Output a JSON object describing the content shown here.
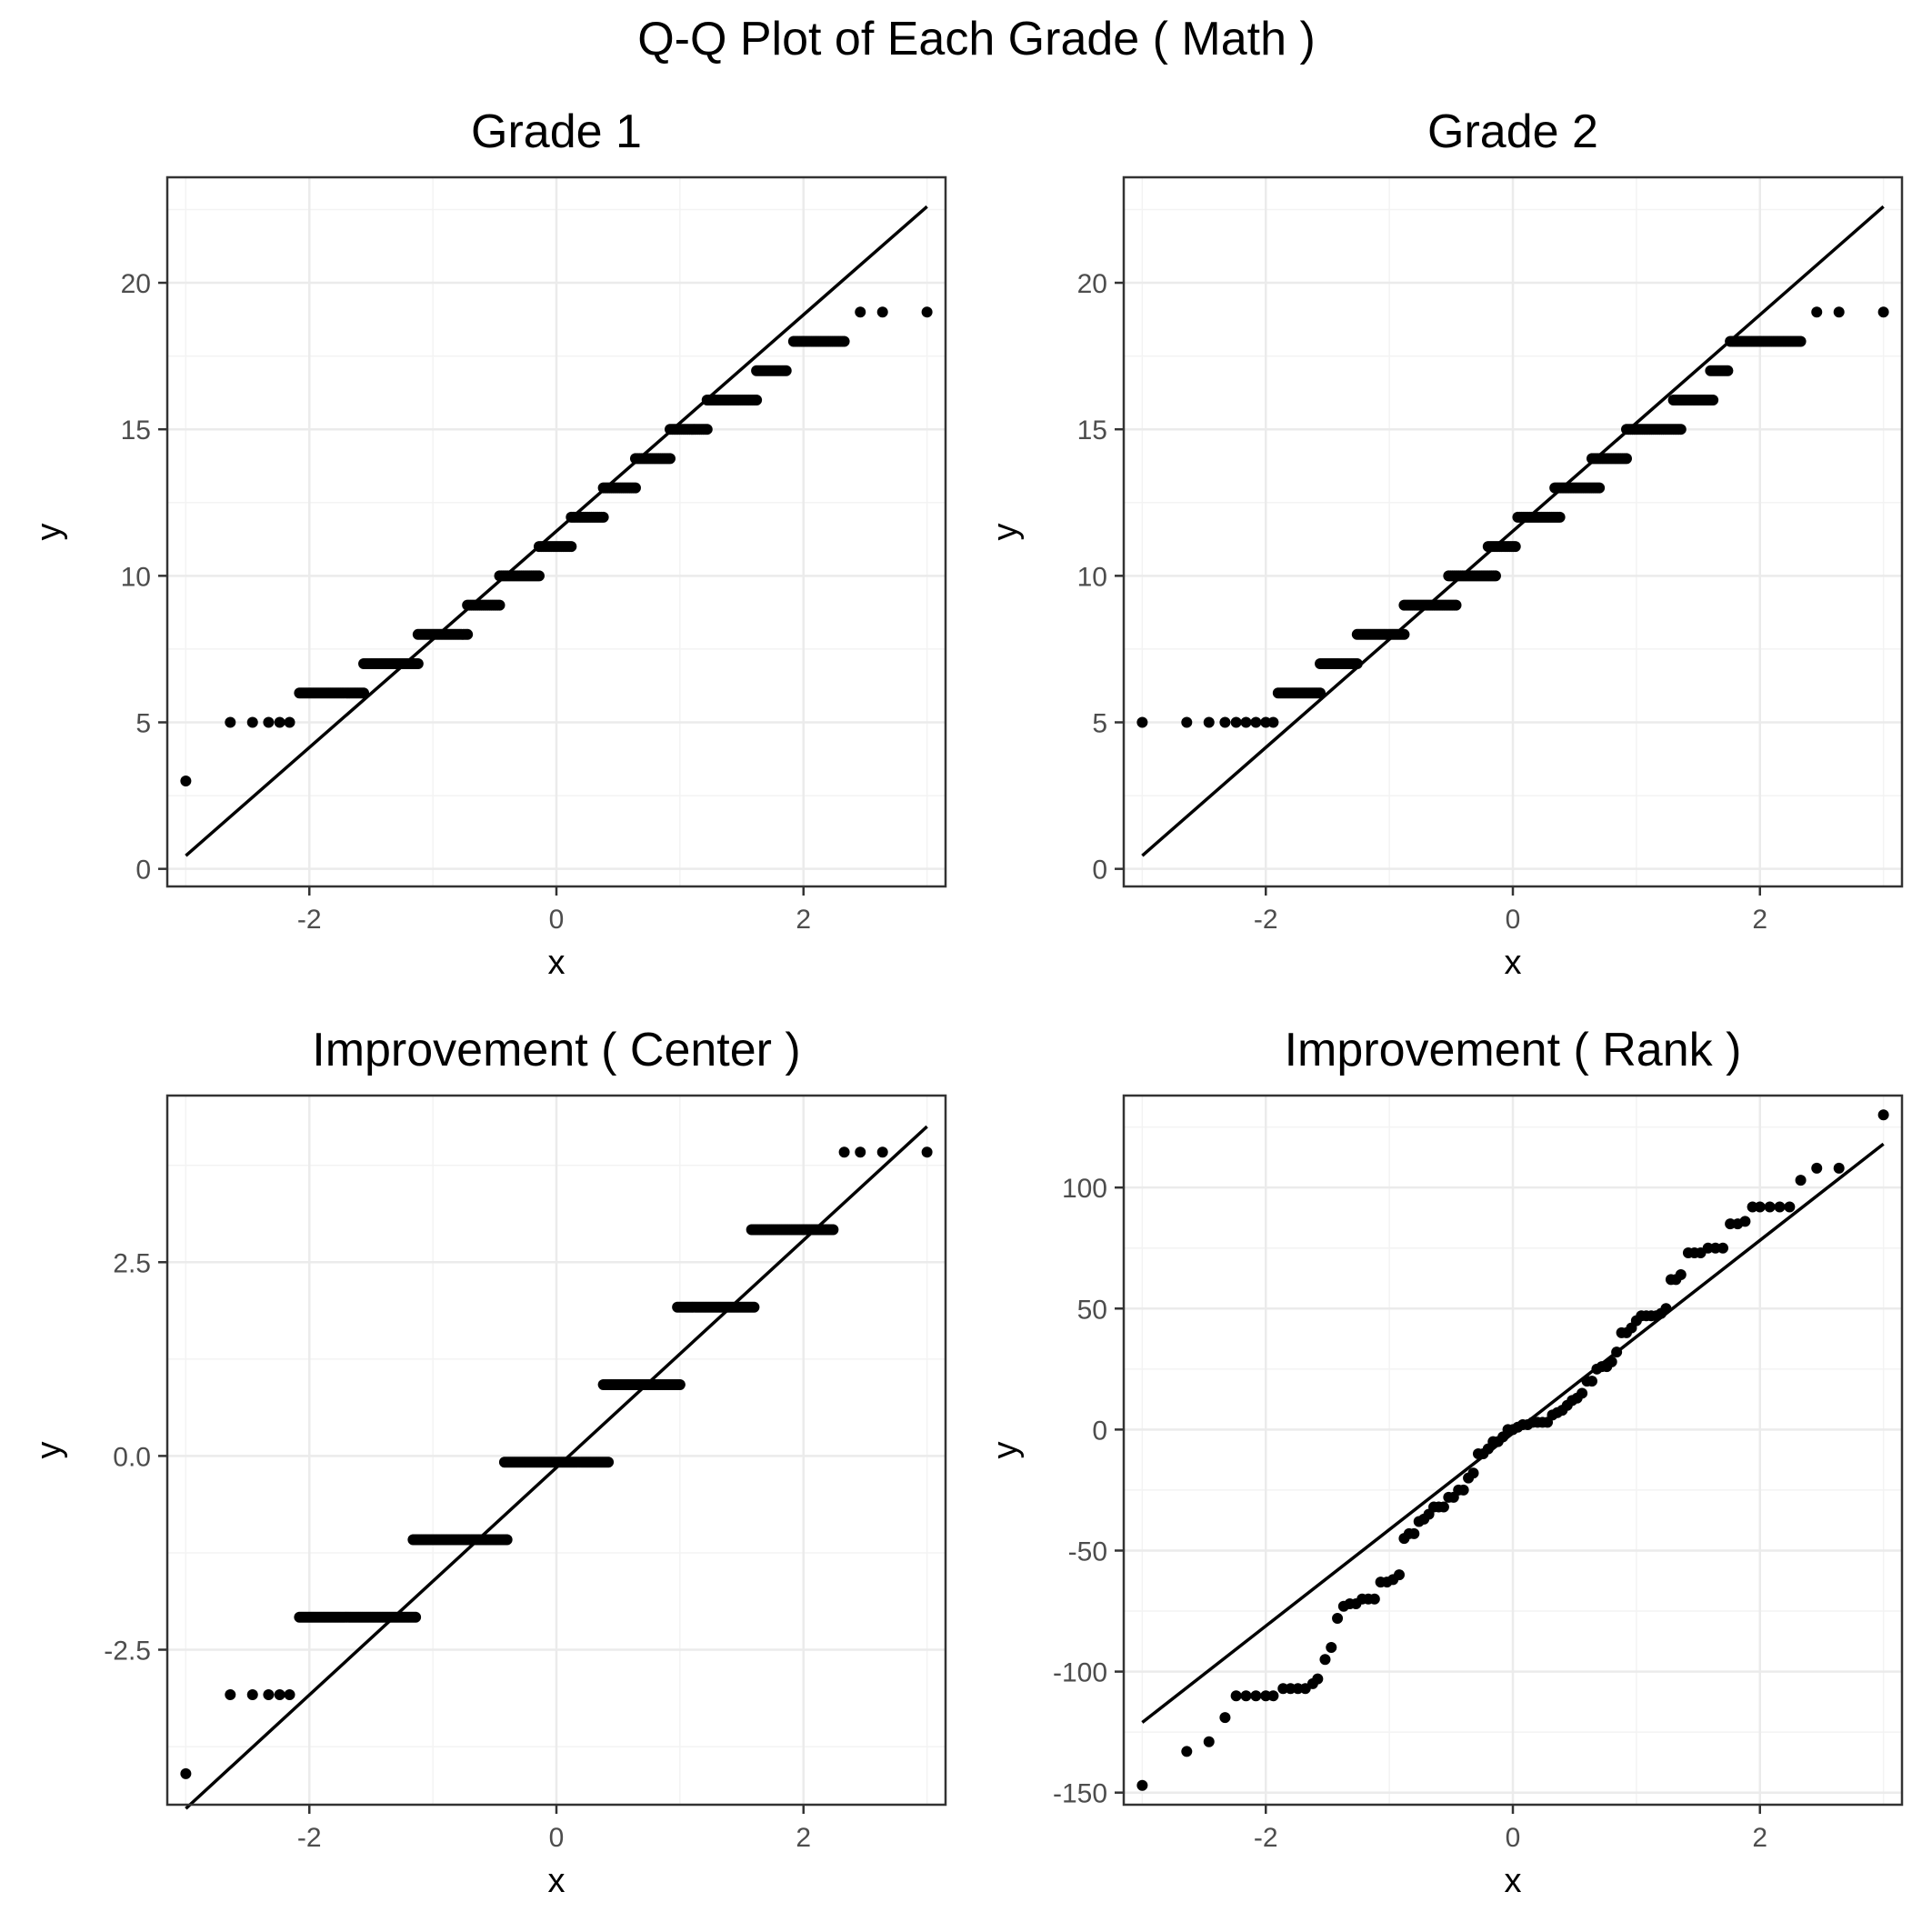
{
  "title": "Q-Q Plot of Each Grade ( Math )",
  "colors": {
    "points": "#000000",
    "line": "#000000",
    "grid_major": "#ebebeb",
    "grid_minor": "#f3f3f3",
    "panel_border": "#333333",
    "tick_text": "#4d4d4d"
  },
  "chart_data": [
    {
      "type": "scatter",
      "title": "Grade 1",
      "xlabel": "x",
      "ylabel": "y",
      "xlim": [
        -3.15,
        3.15
      ],
      "ylim": [
        -0.6,
        23.6
      ],
      "x_ticks": [
        -2,
        0,
        2
      ],
      "x_tick_labels": [
        "-2",
        "0",
        "2"
      ],
      "y_ticks": [
        0,
        5,
        10,
        15,
        20
      ],
      "y_tick_labels": [
        "0",
        "5",
        "10",
        "15",
        "20"
      ],
      "grid": true,
      "reference_line": {
        "x": [
          -3.0,
          3.0
        ],
        "y": [
          0.45,
          22.6
        ]
      },
      "steps": [
        {
          "y": 3,
          "x": [
            -3.0
          ]
        },
        {
          "y": 5,
          "x": [
            -2.64,
            -2.46,
            -2.33,
            -2.24,
            -2.16
          ]
        },
        {
          "y": 6,
          "x_from": -2.08,
          "x_to": -1.56
        },
        {
          "y": 7,
          "x_from": -1.56,
          "x_to": -1.12
        },
        {
          "y": 8,
          "x_from": -1.12,
          "x_to": -0.72
        },
        {
          "y": 9,
          "x_from": -0.72,
          "x_to": -0.46
        },
        {
          "y": 10,
          "x_from": -0.46,
          "x_to": -0.14
        },
        {
          "y": 11,
          "x_from": -0.14,
          "x_to": 0.12
        },
        {
          "y": 12,
          "x_from": 0.12,
          "x_to": 0.38
        },
        {
          "y": 13,
          "x_from": 0.38,
          "x_to": 0.64
        },
        {
          "y": 14,
          "x_from": 0.64,
          "x_to": 0.92
        },
        {
          "y": 15,
          "x_from": 0.92,
          "x_to": 1.22
        },
        {
          "y": 16,
          "x_from": 1.22,
          "x_to": 1.62
        },
        {
          "y": 17,
          "x_from": 1.62,
          "x_to": 1.86
        },
        {
          "y": 18,
          "x_from": 1.92,
          "x_to": 2.33
        },
        {
          "y": 19,
          "x": [
            2.46,
            2.64,
            3.0
          ]
        }
      ]
    },
    {
      "type": "scatter",
      "title": "Grade 2",
      "xlabel": "x",
      "ylabel": "y",
      "xlim": [
        -3.15,
        3.15
      ],
      "ylim": [
        -0.6,
        23.6
      ],
      "x_ticks": [
        -2,
        0,
        2
      ],
      "x_tick_labels": [
        "-2",
        "0",
        "2"
      ],
      "y_ticks": [
        0,
        5,
        10,
        15,
        20
      ],
      "y_tick_labels": [
        "0",
        "5",
        "10",
        "15",
        "20"
      ],
      "grid": true,
      "reference_line": {
        "x": [
          -3.0,
          3.0
        ],
        "y": [
          0.45,
          22.6
        ]
      },
      "steps": [
        {
          "y": 5,
          "x": [
            -3.0,
            -2.64,
            -2.46,
            -2.33,
            -2.24,
            -2.16,
            -2.08,
            -2.0,
            -1.94
          ]
        },
        {
          "y": 6,
          "x_from": -1.9,
          "x_to": -1.56
        },
        {
          "y": 7,
          "x_from": -1.56,
          "x_to": -1.26
        },
        {
          "y": 8,
          "x_from": -1.26,
          "x_to": -0.88
        },
        {
          "y": 9,
          "x_from": -0.88,
          "x_to": -0.46
        },
        {
          "y": 10,
          "x_from": -0.52,
          "x_to": -0.14
        },
        {
          "y": 11,
          "x_from": -0.2,
          "x_to": 0.02
        },
        {
          "y": 12,
          "x_from": 0.04,
          "x_to": 0.38
        },
        {
          "y": 13,
          "x_from": 0.34,
          "x_to": 0.7
        },
        {
          "y": 14,
          "x_from": 0.64,
          "x_to": 0.92
        },
        {
          "y": 15,
          "x_from": 0.92,
          "x_to": 1.36
        },
        {
          "y": 16,
          "x_from": 1.3,
          "x_to": 1.62
        },
        {
          "y": 17,
          "x_from": 1.6,
          "x_to": 1.74
        },
        {
          "y": 18,
          "x_from": 1.76,
          "x_to": 2.33
        },
        {
          "y": 19,
          "x": [
            2.46,
            2.64,
            3.0
          ]
        }
      ]
    },
    {
      "type": "scatter",
      "title": "Improvement ( Center )",
      "xlabel": "x",
      "ylabel": "y",
      "xlim": [
        -3.15,
        3.15
      ],
      "ylim": [
        -4.5,
        4.65
      ],
      "x_ticks": [
        -2,
        0,
        2
      ],
      "x_tick_labels": [
        "-2",
        "0",
        "2"
      ],
      "y_ticks": [
        -2.5,
        0.0,
        2.5
      ],
      "y_tick_labels": [
        "-2.5",
        "0.0",
        "2.5"
      ],
      "grid": true,
      "reference_line": {
        "x": [
          -3.0,
          3.0
        ],
        "y": [
          -4.55,
          4.25
        ]
      },
      "steps": [
        {
          "y": -4.1,
          "x": [
            -3.0
          ]
        },
        {
          "y": -3.08,
          "x": [
            -2.64,
            -2.46,
            -2.33,
            -2.24,
            -2.16
          ]
        },
        {
          "y": -2.08,
          "x_from": -2.08,
          "x_to": -1.14
        },
        {
          "y": -1.08,
          "x_from": -1.16,
          "x_to": -0.4
        },
        {
          "y": -0.08,
          "x_from": -0.42,
          "x_to": 0.42
        },
        {
          "y": 0.92,
          "x_from": 0.38,
          "x_to": 1.0
        },
        {
          "y": 1.92,
          "x_from": 0.98,
          "x_to": 1.6
        },
        {
          "y": 2.92,
          "x_from": 1.58,
          "x_to": 2.24
        },
        {
          "y": 3.92,
          "x": [
            2.33,
            2.46,
            2.64,
            3.0
          ]
        }
      ]
    },
    {
      "type": "scatter",
      "title": "Improvement ( Rank )",
      "xlabel": "x",
      "ylabel": "y",
      "xlim": [
        -3.15,
        3.15
      ],
      "ylim": [
        -155,
        138
      ],
      "x_ticks": [
        -2,
        0,
        2
      ],
      "x_tick_labels": [
        "-2",
        "0",
        "2"
      ],
      "y_ticks": [
        -150,
        -100,
        -50,
        0,
        50,
        100
      ],
      "y_tick_labels": [
        "-150",
        "-100",
        "-50",
        "0",
        "50",
        "100"
      ],
      "grid": true,
      "reference_line": {
        "x": [
          -3.0,
          3.0
        ],
        "y": [
          -121,
          118
        ]
      },
      "points_xy": [
        [
          -3.0,
          -147
        ],
        [
          -2.64,
          -133
        ],
        [
          -2.46,
          -129
        ],
        [
          -2.33,
          -119
        ],
        [
          -2.24,
          -110
        ],
        [
          -2.16,
          -110
        ],
        [
          -2.08,
          -110
        ],
        [
          -2.0,
          -110
        ],
        [
          -1.94,
          -110
        ],
        [
          -1.86,
          -107
        ],
        [
          -1.8,
          -107
        ],
        [
          -1.74,
          -107
        ],
        [
          -1.68,
          -107
        ],
        [
          -1.62,
          -105
        ],
        [
          -1.58,
          -103
        ],
        [
          -1.52,
          -95
        ],
        [
          -1.47,
          -90
        ],
        [
          -1.42,
          -78
        ],
        [
          -1.37,
          -73
        ],
        [
          -1.32,
          -72
        ],
        [
          -1.27,
          -72
        ],
        [
          -1.22,
          -70
        ],
        [
          -1.17,
          -70
        ],
        [
          -1.12,
          -70
        ],
        [
          -1.07,
          -63
        ],
        [
          -1.02,
          -63
        ],
        [
          -0.97,
          -62
        ],
        [
          -0.92,
          -60
        ],
        [
          -0.88,
          -45
        ],
        [
          -0.84,
          -43
        ],
        [
          -0.8,
          -43
        ],
        [
          -0.76,
          -38
        ],
        [
          -0.72,
          -37
        ],
        [
          -0.68,
          -35
        ],
        [
          -0.64,
          -32
        ],
        [
          -0.6,
          -32
        ],
        [
          -0.56,
          -32
        ],
        [
          -0.52,
          -28
        ],
        [
          -0.48,
          -28
        ],
        [
          -0.44,
          -25
        ],
        [
          -0.4,
          -25
        ],
        [
          -0.36,
          -20
        ],
        [
          -0.32,
          -18
        ],
        [
          -0.28,
          -10
        ],
        [
          -0.24,
          -10
        ],
        [
          -0.2,
          -8
        ],
        [
          -0.16,
          -5
        ],
        [
          -0.12,
          -5
        ],
        [
          -0.08,
          -3
        ],
        [
          -0.04,
          0
        ],
        [
          0.0,
          0
        ],
        [
          0.04,
          1
        ],
        [
          0.08,
          2
        ],
        [
          0.12,
          2
        ],
        [
          0.16,
          3
        ],
        [
          0.2,
          3
        ],
        [
          0.24,
          3
        ],
        [
          0.28,
          3
        ],
        [
          0.32,
          6
        ],
        [
          0.36,
          7
        ],
        [
          0.4,
          8
        ],
        [
          0.44,
          10
        ],
        [
          0.48,
          12
        ],
        [
          0.52,
          13
        ],
        [
          0.56,
          15
        ],
        [
          0.6,
          20
        ],
        [
          0.64,
          20
        ],
        [
          0.68,
          25
        ],
        [
          0.72,
          26
        ],
        [
          0.76,
          26
        ],
        [
          0.8,
          28
        ],
        [
          0.84,
          32
        ],
        [
          0.88,
          40
        ],
        [
          0.92,
          40
        ],
        [
          0.96,
          42
        ],
        [
          1.0,
          45
        ],
        [
          1.04,
          47
        ],
        [
          1.08,
          47
        ],
        [
          1.12,
          47
        ],
        [
          1.16,
          47
        ],
        [
          1.2,
          48
        ],
        [
          1.24,
          50
        ],
        [
          1.28,
          62
        ],
        [
          1.32,
          62
        ],
        [
          1.36,
          64
        ],
        [
          1.42,
          73
        ],
        [
          1.47,
          73
        ],
        [
          1.52,
          73
        ],
        [
          1.58,
          75
        ],
        [
          1.64,
          75
        ],
        [
          1.7,
          75
        ],
        [
          1.76,
          85
        ],
        [
          1.82,
          85
        ],
        [
          1.88,
          86
        ],
        [
          1.94,
          92
        ],
        [
          2.0,
          92
        ],
        [
          2.08,
          92
        ],
        [
          2.16,
          92
        ],
        [
          2.24,
          92
        ],
        [
          2.33,
          103
        ],
        [
          2.46,
          108
        ],
        [
          2.64,
          108
        ],
        [
          3.0,
          130
        ]
      ]
    }
  ]
}
